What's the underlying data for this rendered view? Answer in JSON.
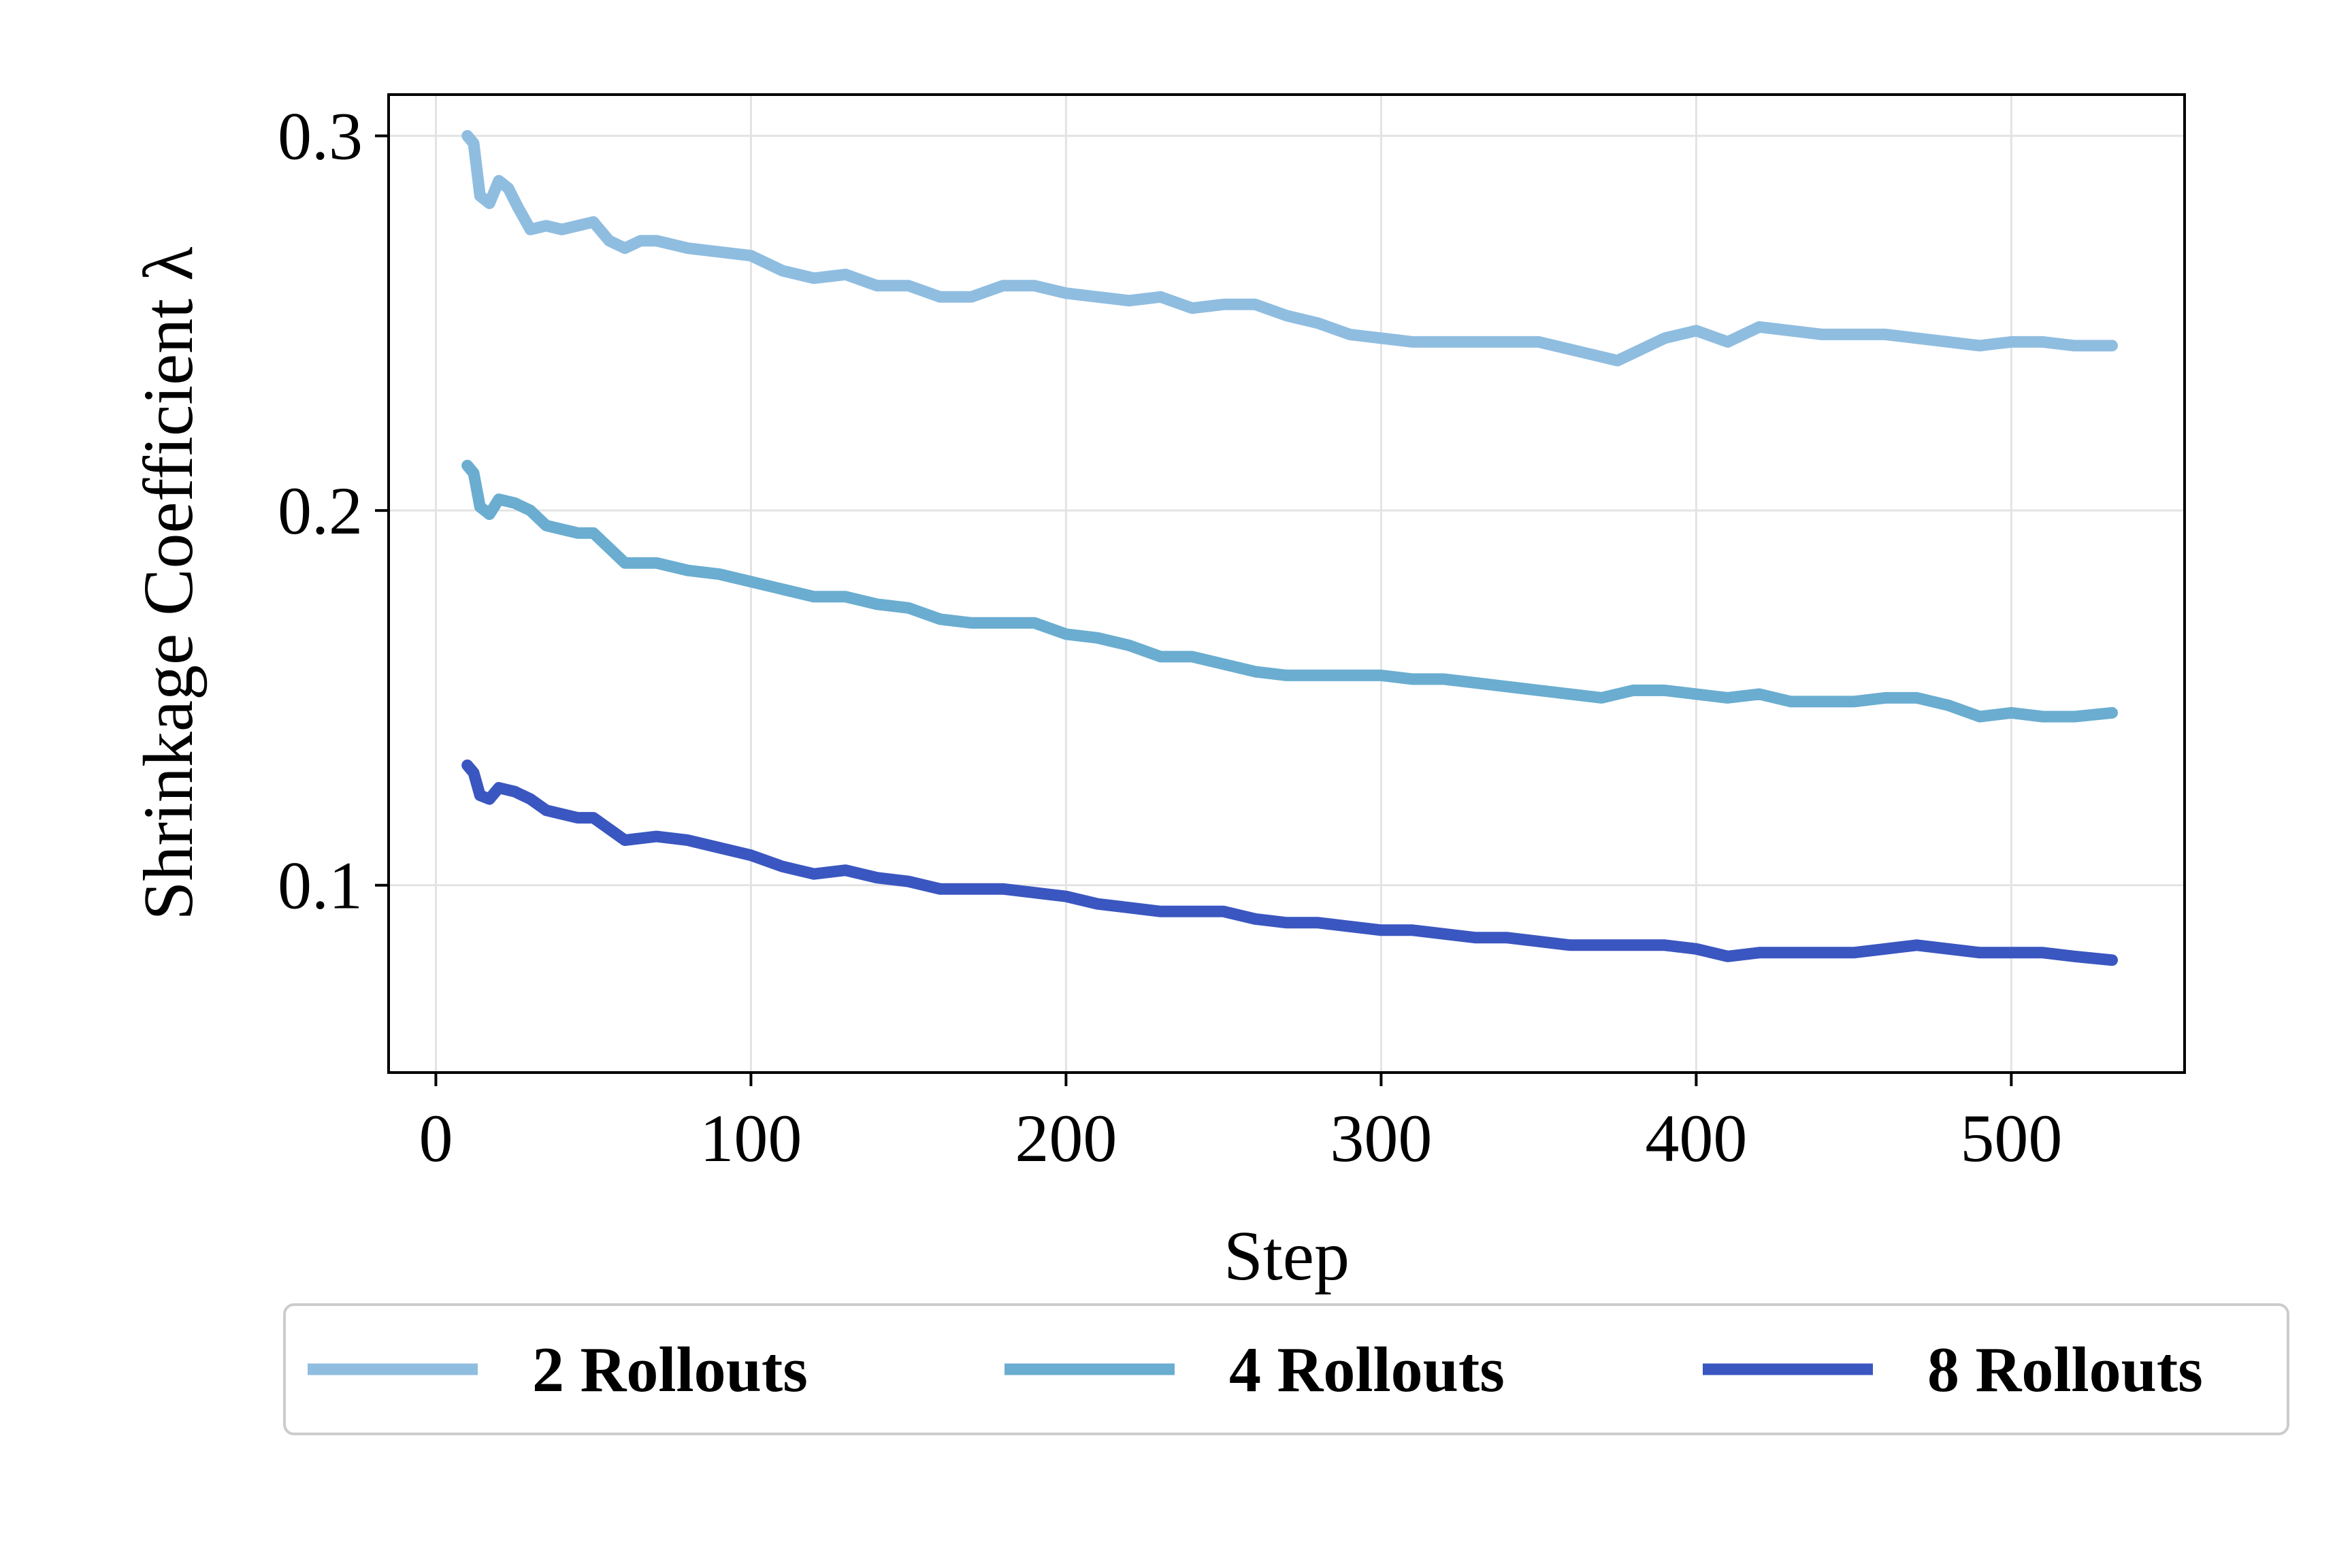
{
  "chart_data": {
    "type": "line",
    "title": "",
    "xlabel": "Step",
    "ylabel": "Shrinkage Coefficient λ",
    "xlim": [
      -15,
      555
    ],
    "ylim": [
      0.05,
      0.311
    ],
    "x_ticks": [
      0,
      100,
      200,
      300,
      400,
      500
    ],
    "x_tick_labels": [
      "0",
      "100",
      "200",
      "300",
      "400",
      "500"
    ],
    "y_ticks": [
      0.1,
      0.2,
      0.3
    ],
    "y_tick_labels": [
      "0.1",
      "0.2",
      "0.3"
    ],
    "grid": true,
    "legend_position": "bottom, outside plot",
    "series": [
      {
        "name": "2 Rollouts",
        "color": "#8fbde0",
        "points": [
          [
            10,
            0.3
          ],
          [
            12,
            0.298
          ],
          [
            14,
            0.284
          ],
          [
            17,
            0.282
          ],
          [
            20,
            0.288
          ],
          [
            23,
            0.286
          ],
          [
            26,
            0.281
          ],
          [
            30,
            0.275
          ],
          [
            35,
            0.276
          ],
          [
            40,
            0.275
          ],
          [
            45,
            0.276
          ],
          [
            50,
            0.277
          ],
          [
            55,
            0.272
          ],
          [
            60,
            0.27
          ],
          [
            65,
            0.272
          ],
          [
            70,
            0.272
          ],
          [
            80,
            0.27
          ],
          [
            90,
            0.269
          ],
          [
            100,
            0.268
          ],
          [
            110,
            0.264
          ],
          [
            120,
            0.262
          ],
          [
            130,
            0.263
          ],
          [
            140,
            0.26
          ],
          [
            150,
            0.26
          ],
          [
            160,
            0.257
          ],
          [
            170,
            0.257
          ],
          [
            180,
            0.26
          ],
          [
            190,
            0.26
          ],
          [
            200,
            0.258
          ],
          [
            210,
            0.257
          ],
          [
            220,
            0.256
          ],
          [
            230,
            0.257
          ],
          [
            240,
            0.254
          ],
          [
            250,
            0.255
          ],
          [
            260,
            0.255
          ],
          [
            270,
            0.252
          ],
          [
            280,
            0.25
          ],
          [
            290,
            0.247
          ],
          [
            300,
            0.246
          ],
          [
            310,
            0.245
          ],
          [
            320,
            0.245
          ],
          [
            330,
            0.245
          ],
          [
            340,
            0.245
          ],
          [
            350,
            0.245
          ],
          [
            360,
            0.243
          ],
          [
            370,
            0.241
          ],
          [
            375,
            0.24
          ],
          [
            380,
            0.242
          ],
          [
            390,
            0.246
          ],
          [
            400,
            0.248
          ],
          [
            410,
            0.245
          ],
          [
            420,
            0.249
          ],
          [
            430,
            0.248
          ],
          [
            440,
            0.247
          ],
          [
            450,
            0.247
          ],
          [
            460,
            0.247
          ],
          [
            470,
            0.246
          ],
          [
            480,
            0.245
          ],
          [
            490,
            0.244
          ],
          [
            500,
            0.245
          ],
          [
            510,
            0.245
          ],
          [
            520,
            0.244
          ],
          [
            532,
            0.244
          ]
        ]
      },
      {
        "name": "4 Rollouts",
        "color": "#6aadd0",
        "points": [
          [
            10,
            0.212
          ],
          [
            12,
            0.21
          ],
          [
            14,
            0.201
          ],
          [
            17,
            0.199
          ],
          [
            20,
            0.203
          ],
          [
            25,
            0.202
          ],
          [
            30,
            0.2
          ],
          [
            35,
            0.196
          ],
          [
            40,
            0.195
          ],
          [
            45,
            0.194
          ],
          [
            50,
            0.194
          ],
          [
            55,
            0.19
          ],
          [
            60,
            0.186
          ],
          [
            70,
            0.186
          ],
          [
            80,
            0.184
          ],
          [
            90,
            0.183
          ],
          [
            100,
            0.181
          ],
          [
            110,
            0.179
          ],
          [
            120,
            0.177
          ],
          [
            130,
            0.177
          ],
          [
            140,
            0.175
          ],
          [
            150,
            0.174
          ],
          [
            160,
            0.171
          ],
          [
            170,
            0.17
          ],
          [
            180,
            0.17
          ],
          [
            190,
            0.17
          ],
          [
            200,
            0.167
          ],
          [
            210,
            0.166
          ],
          [
            220,
            0.164
          ],
          [
            230,
            0.161
          ],
          [
            240,
            0.161
          ],
          [
            250,
            0.159
          ],
          [
            260,
            0.157
          ],
          [
            270,
            0.156
          ],
          [
            280,
            0.156
          ],
          [
            290,
            0.156
          ],
          [
            300,
            0.156
          ],
          [
            310,
            0.155
          ],
          [
            320,
            0.155
          ],
          [
            330,
            0.154
          ],
          [
            340,
            0.153
          ],
          [
            350,
            0.152
          ],
          [
            360,
            0.151
          ],
          [
            370,
            0.15
          ],
          [
            380,
            0.152
          ],
          [
            390,
            0.152
          ],
          [
            400,
            0.151
          ],
          [
            410,
            0.15
          ],
          [
            420,
            0.151
          ],
          [
            430,
            0.149
          ],
          [
            440,
            0.149
          ],
          [
            450,
            0.149
          ],
          [
            460,
            0.15
          ],
          [
            470,
            0.15
          ],
          [
            480,
            0.148
          ],
          [
            490,
            0.145
          ],
          [
            500,
            0.146
          ],
          [
            510,
            0.145
          ],
          [
            520,
            0.145
          ],
          [
            532,
            0.146
          ]
        ]
      },
      {
        "name": "8 Rollouts",
        "color": "#3a56c0",
        "points": [
          [
            10,
            0.132
          ],
          [
            12,
            0.13
          ],
          [
            14,
            0.124
          ],
          [
            17,
            0.123
          ],
          [
            20,
            0.126
          ],
          [
            25,
            0.125
          ],
          [
            30,
            0.123
          ],
          [
            35,
            0.12
          ],
          [
            40,
            0.119
          ],
          [
            45,
            0.118
          ],
          [
            50,
            0.118
          ],
          [
            55,
            0.115
          ],
          [
            60,
            0.112
          ],
          [
            70,
            0.113
          ],
          [
            80,
            0.112
          ],
          [
            90,
            0.11
          ],
          [
            100,
            0.108
          ],
          [
            110,
            0.105
          ],
          [
            120,
            0.103
          ],
          [
            130,
            0.104
          ],
          [
            140,
            0.102
          ],
          [
            150,
            0.101
          ],
          [
            160,
            0.099
          ],
          [
            170,
            0.099
          ],
          [
            180,
            0.099
          ],
          [
            190,
            0.098
          ],
          [
            200,
            0.097
          ],
          [
            210,
            0.095
          ],
          [
            220,
            0.094
          ],
          [
            230,
            0.093
          ],
          [
            240,
            0.093
          ],
          [
            250,
            0.093
          ],
          [
            260,
            0.091
          ],
          [
            270,
            0.09
          ],
          [
            280,
            0.09
          ],
          [
            290,
            0.089
          ],
          [
            300,
            0.088
          ],
          [
            310,
            0.088
          ],
          [
            320,
            0.087
          ],
          [
            330,
            0.086
          ],
          [
            340,
            0.086
          ],
          [
            350,
            0.085
          ],
          [
            360,
            0.084
          ],
          [
            370,
            0.084
          ],
          [
            380,
            0.084
          ],
          [
            390,
            0.084
          ],
          [
            400,
            0.083
          ],
          [
            410,
            0.081
          ],
          [
            420,
            0.082
          ],
          [
            430,
            0.082
          ],
          [
            440,
            0.082
          ],
          [
            450,
            0.082
          ],
          [
            460,
            0.083
          ],
          [
            470,
            0.084
          ],
          [
            480,
            0.083
          ],
          [
            490,
            0.082
          ],
          [
            500,
            0.082
          ],
          [
            510,
            0.082
          ],
          [
            520,
            0.081
          ],
          [
            532,
            0.08
          ]
        ]
      }
    ]
  }
}
